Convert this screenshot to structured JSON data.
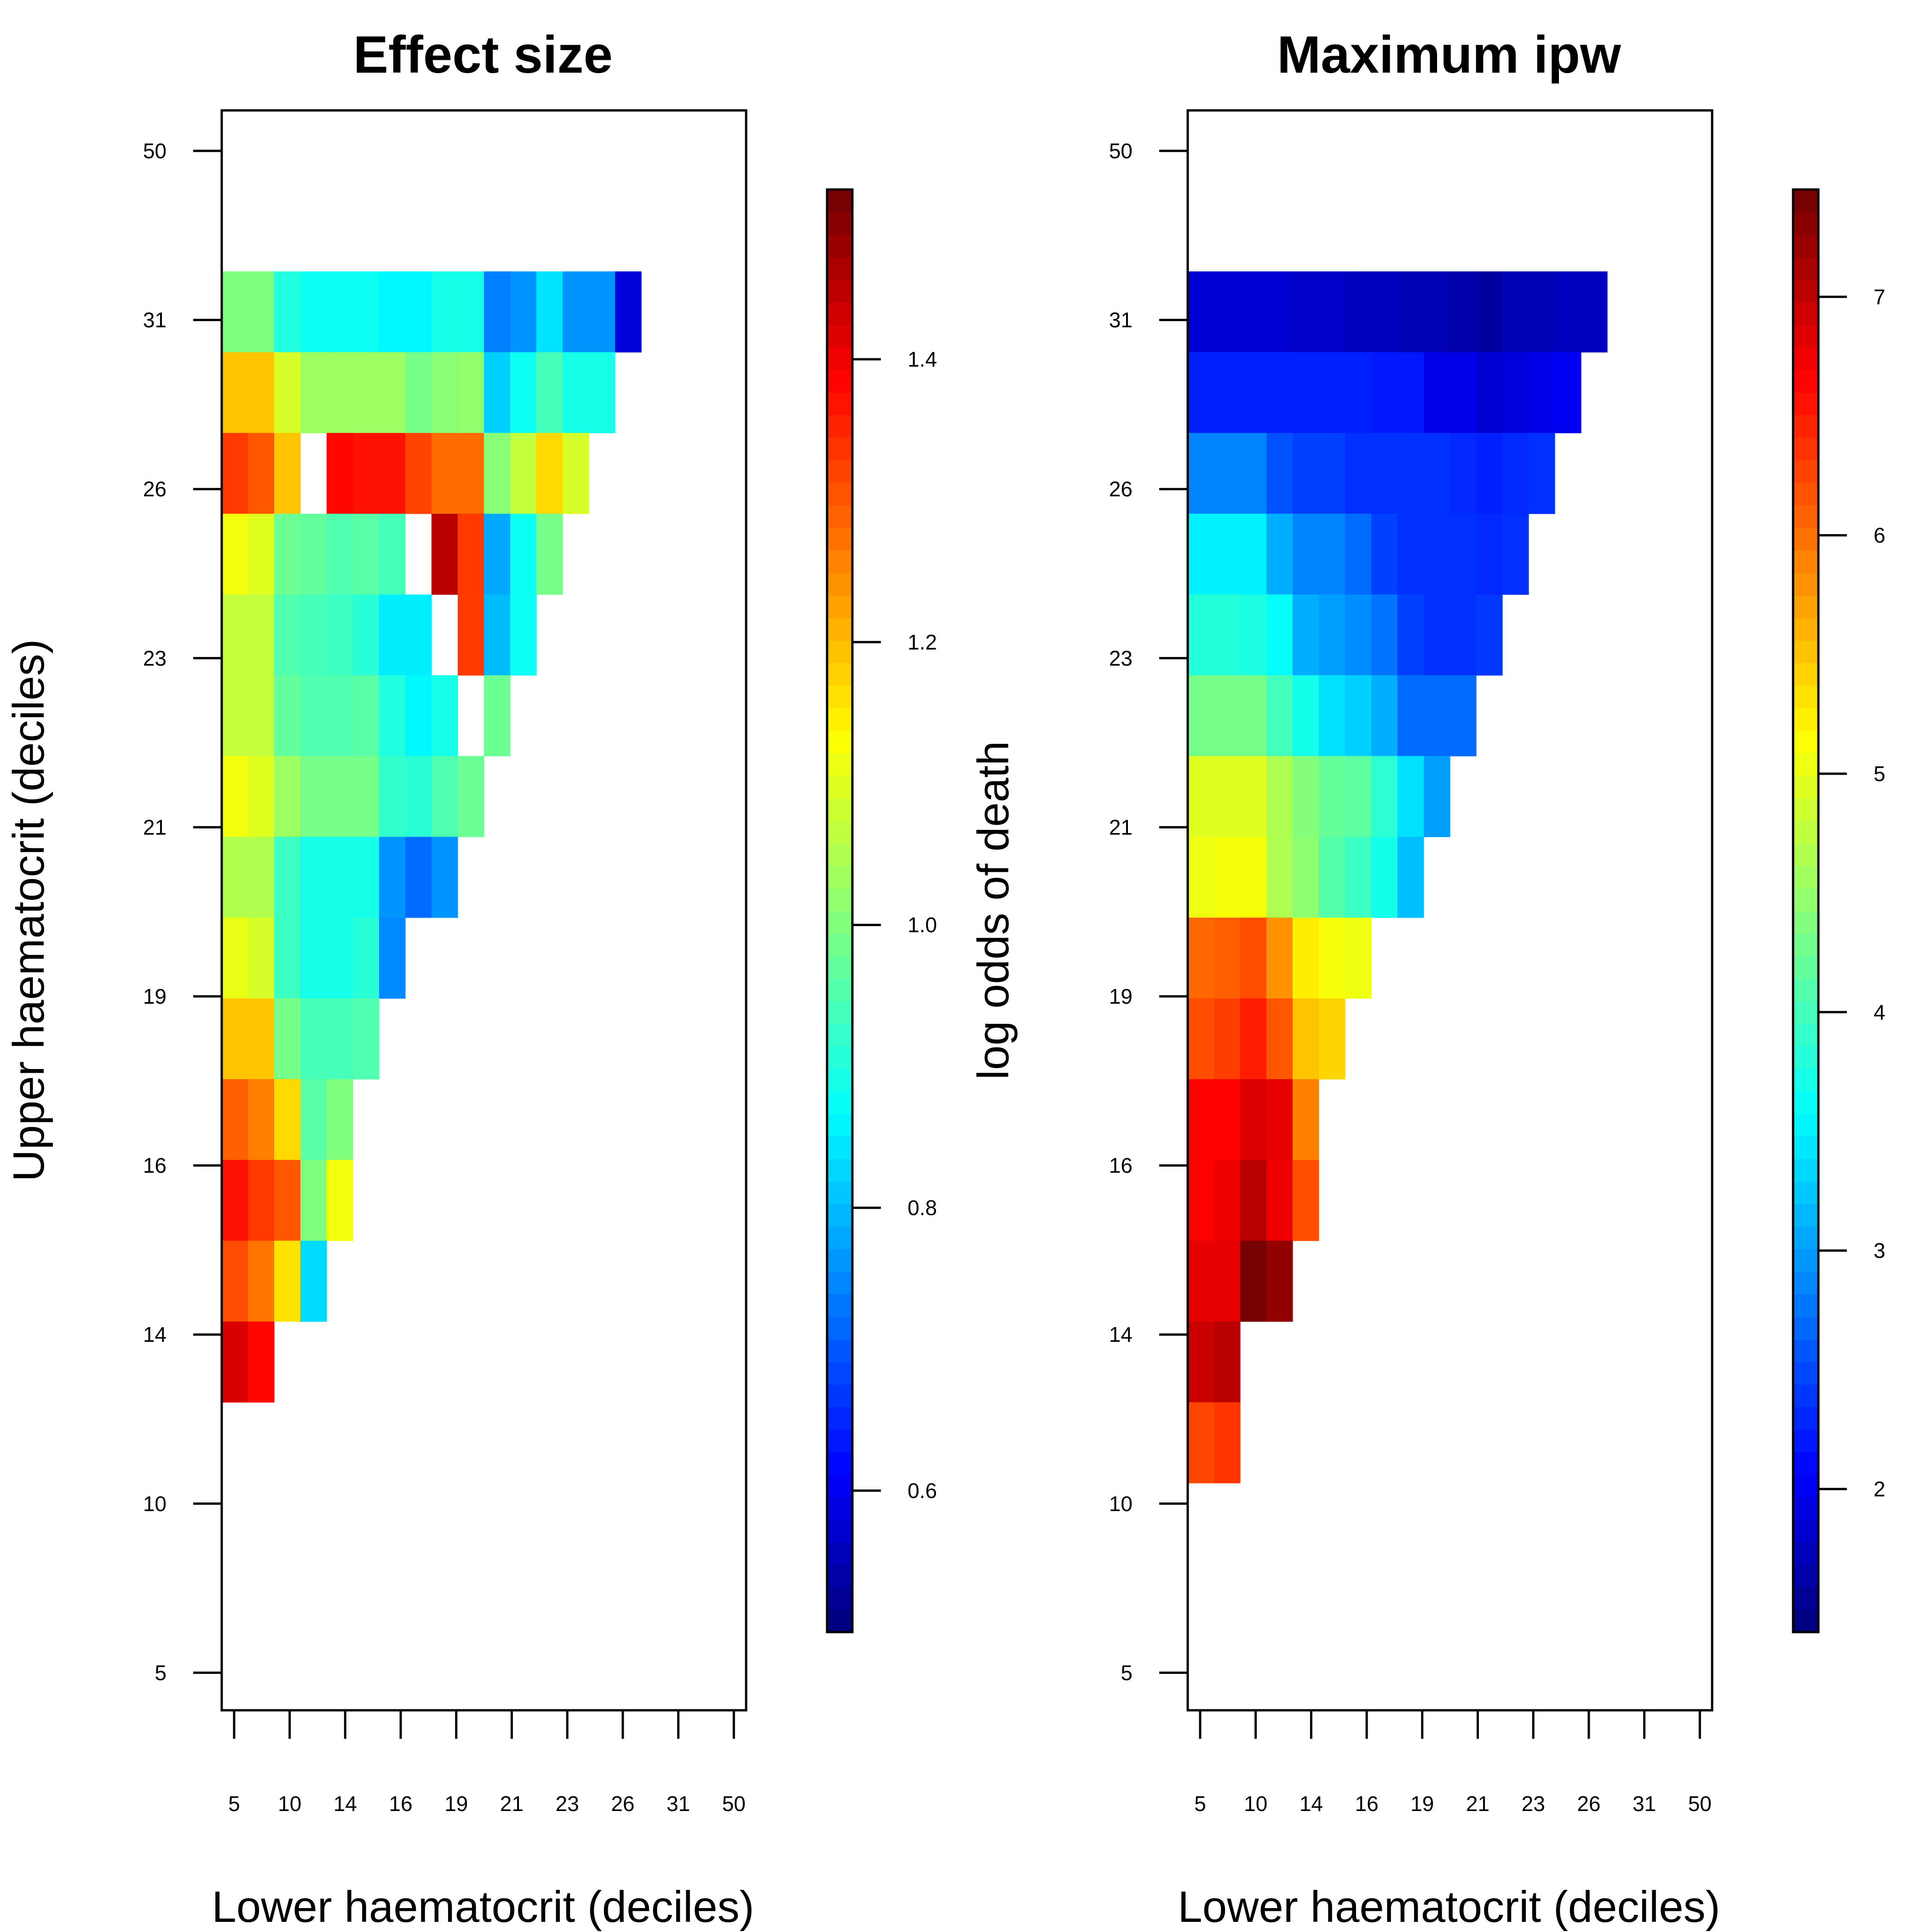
{
  "chart_data": [
    {
      "type": "heatmap",
      "title": "Effect size",
      "xlabel": "Lower haematocrit (deciles)",
      "ylabel": "Upper haematocrit (deciles)",
      "x_tick_labels": [
        "5",
        "10",
        "14",
        "16",
        "19",
        "21",
        "23",
        "26",
        "31",
        "50"
      ],
      "y_tick_labels": [
        "5",
        "10",
        "14",
        "16",
        "19",
        "21",
        "23",
        "26",
        "31",
        "50"
      ],
      "x_tick_values": [
        5,
        10,
        14,
        16,
        19,
        21,
        23,
        26,
        31,
        50
      ],
      "y_tick_values": [
        5,
        10,
        14,
        16,
        19,
        21,
        23,
        26,
        31,
        50
      ],
      "colorbar": {
        "label": "log odds of death",
        "range": [
          0.5,
          1.52
        ],
        "ticks": [
          0.6,
          0.8,
          1.0,
          1.2,
          1.4
        ],
        "tick_labels": [
          "0.6",
          "0.8",
          "1.0",
          "1.2",
          "1.4"
        ]
      },
      "grid_columns": 20,
      "grid_top_row_index": 5,
      "rows_note": "rows listed top (upper decile near 31) to bottom (near 14); null = blank cell",
      "rows": [
        [
          1.0,
          1.0,
          0.9,
          0.88,
          0.88,
          0.88,
          0.86,
          0.86,
          0.89,
          0.89,
          0.74,
          0.76,
          0.84,
          0.76,
          0.76,
          0.58
        ],
        [
          1.19,
          1.19,
          1.09,
          1.03,
          1.03,
          1.03,
          1.03,
          0.99,
          1.01,
          1.02,
          0.82,
          0.88,
          0.94,
          0.89,
          0.89
        ],
        [
          1.33,
          1.3,
          1.19,
          null,
          1.38,
          1.37,
          1.37,
          1.32,
          1.28,
          1.28,
          1.01,
          1.07,
          1.17,
          1.09
        ],
        [
          1.12,
          1.1,
          0.98,
          0.97,
          0.95,
          0.96,
          0.94,
          null,
          1.45,
          1.33,
          0.78,
          0.88,
          0.99
        ],
        [
          1.07,
          1.07,
          0.95,
          0.94,
          0.93,
          0.91,
          0.85,
          0.85,
          null,
          1.33,
          0.8,
          0.88
        ],
        [
          1.07,
          1.07,
          0.97,
          0.95,
          0.95,
          0.96,
          0.9,
          0.86,
          0.89,
          null,
          0.98
        ],
        [
          1.12,
          1.1,
          1.03,
          0.99,
          0.99,
          0.99,
          0.92,
          0.91,
          0.95,
          0.98
        ],
        [
          1.05,
          1.05,
          0.93,
          0.89,
          0.89,
          0.89,
          0.76,
          0.72,
          0.76
        ],
        [
          1.11,
          1.09,
          0.93,
          0.89,
          0.89,
          0.91,
          0.75
        ],
        [
          1.19,
          1.19,
          0.99,
          0.94,
          0.94,
          0.95
        ],
        [
          1.29,
          1.26,
          1.17,
          0.96,
          1.0
        ],
        [
          1.37,
          1.33,
          1.3,
          1.0,
          1.12
        ],
        [
          1.31,
          1.27,
          1.16,
          0.83
        ],
        [
          1.42,
          1.38
        ]
      ]
    },
    {
      "type": "heatmap",
      "title": "Maximum ipw",
      "xlabel": "Lower haematocrit (deciles)",
      "ylabel": "",
      "x_tick_labels": [
        "5",
        "10",
        "14",
        "16",
        "19",
        "21",
        "23",
        "26",
        "31",
        "50"
      ],
      "y_tick_labels": [
        "5",
        "10",
        "14",
        "16",
        "19",
        "21",
        "23",
        "26",
        "31",
        "50"
      ],
      "x_tick_values": [
        5,
        10,
        14,
        16,
        19,
        21,
        23,
        26,
        31,
        50
      ],
      "y_tick_values": [
        5,
        10,
        14,
        16,
        19,
        21,
        23,
        26,
        31,
        50
      ],
      "colorbar": {
        "label": "",
        "range": [
          1.4,
          7.45
        ],
        "ticks": [
          2,
          3,
          4,
          5,
          6,
          7
        ],
        "tick_labels": [
          "2",
          "3",
          "4",
          "5",
          "6",
          "7"
        ]
      },
      "grid_columns": 20,
      "grid_top_row_index": 5,
      "rows_note": "rows listed top (upper decile near 31) to bottom (near 11); values are maximum inverse probability weights",
      "rows": [
        [
          1.85,
          1.85,
          1.85,
          1.85,
          1.8,
          1.8,
          1.75,
          1.75,
          1.7,
          1.7,
          1.65,
          1.6,
          1.7,
          1.7,
          1.75,
          1.75
        ],
        [
          2.25,
          2.25,
          2.25,
          2.25,
          2.25,
          2.25,
          2.25,
          2.2,
          2.2,
          1.95,
          1.95,
          1.85,
          1.9,
          1.95,
          2.0
        ],
        [
          2.85,
          2.85,
          2.85,
          2.55,
          2.45,
          2.45,
          2.35,
          2.35,
          2.35,
          2.35,
          2.3,
          2.25,
          2.3,
          2.35
        ],
        [
          3.5,
          3.5,
          3.5,
          3.1,
          2.85,
          2.85,
          2.7,
          2.45,
          2.35,
          2.35,
          2.35,
          2.3,
          2.35
        ],
        [
          3.8,
          3.8,
          3.75,
          3.6,
          3.1,
          3.0,
          2.9,
          2.75,
          2.45,
          2.35,
          2.35,
          2.4
        ],
        [
          4.3,
          4.3,
          4.3,
          4.0,
          3.7,
          3.4,
          3.3,
          3.1,
          2.7,
          2.7,
          2.7
        ],
        [
          4.95,
          4.95,
          4.95,
          4.65,
          4.4,
          4.2,
          4.15,
          3.85,
          3.4,
          3.0
        ],
        [
          5.05,
          5.1,
          5.1,
          4.65,
          4.45,
          4.1,
          3.95,
          3.7,
          3.2
        ],
        [
          6.05,
          6.1,
          6.2,
          5.8,
          5.25,
          5.1,
          5.05
        ],
        [
          6.2,
          6.3,
          6.5,
          6.15,
          5.5,
          5.4
        ],
        [
          6.65,
          6.65,
          6.85,
          6.8,
          5.9
        ],
        [
          6.65,
          6.75,
          7.05,
          6.75,
          6.2
        ],
        [
          6.8,
          6.8,
          7.4,
          7.25
        ],
        [
          6.95,
          7.05
        ],
        [
          6.25,
          6.35
        ]
      ]
    }
  ]
}
